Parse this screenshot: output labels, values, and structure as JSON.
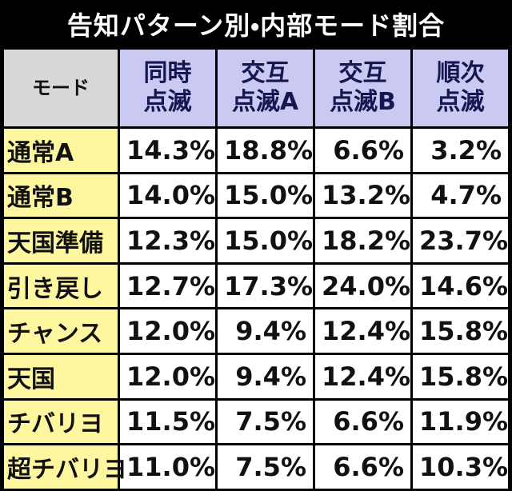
{
  "header": {
    "title": "告知パターン別・内部モード割合"
  },
  "table": {
    "columns": [
      "モード",
      "同時\n点滅",
      "交互\n点滅A",
      "交互\n点滅B",
      "順次\n点滅"
    ],
    "rows": [
      [
        "通常A",
        "14.3%",
        "18.8%",
        "6.6%",
        "3.2%"
      ],
      [
        "通常B",
        "14.0%",
        "15.0%",
        "13.2%",
        "4.7%"
      ],
      [
        "天国準備",
        "12.3%",
        "15.0%",
        "18.2%",
        "23.7%"
      ],
      [
        "引き戻し",
        "12.7%",
        "17.3%",
        "24.0%",
        "14.6%"
      ],
      [
        "チャンス",
        "12.0%",
        "9.4%",
        "12.4%",
        "15.8%"
      ],
      [
        "天国",
        "12.0%",
        "9.4%",
        "12.4%",
        "15.8%"
      ],
      [
        "チバリヨ",
        "11.5%",
        "7.5%",
        "6.6%",
        "11.9%"
      ],
      [
        "超チバリヨ",
        "11.0%",
        "7.5%",
        "6.6%",
        "10.3%"
      ]
    ]
  }
}
